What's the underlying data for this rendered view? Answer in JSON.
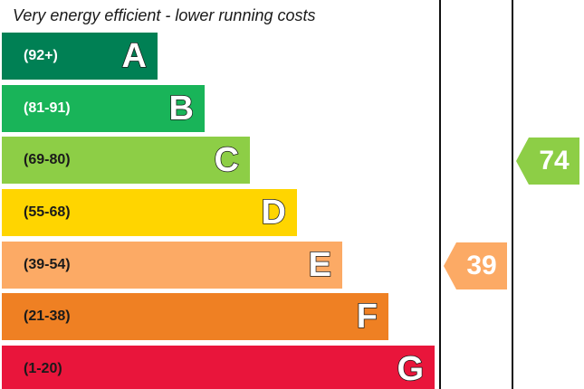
{
  "chart_data": {
    "type": "bar",
    "title": "Very energy efficient - lower running costs",
    "bands": [
      {
        "letter": "A",
        "range": "(92+)",
        "color": "#008054",
        "text_color": "#ffffff"
      },
      {
        "letter": "B",
        "range": "(81-91)",
        "color": "#19b459",
        "text_color": "#ffffff"
      },
      {
        "letter": "C",
        "range": "(69-80)",
        "color": "#8dce46",
        "text_color": "#1a1a1a"
      },
      {
        "letter": "D",
        "range": "(55-68)",
        "color": "#ffd500",
        "text_color": "#1a1a1a"
      },
      {
        "letter": "E",
        "range": "(39-54)",
        "color": "#fcaa65",
        "text_color": "#1a1a1a"
      },
      {
        "letter": "F",
        "range": "(21-38)",
        "color": "#ef8023",
        "text_color": "#1a1a1a"
      },
      {
        "letter": "G",
        "range": "(1-20)",
        "color": "#e9153b",
        "text_color": "#1a1a1a"
      }
    ],
    "ratings": [
      {
        "column": "current",
        "value": "39",
        "band": "E",
        "color": "#fcaa65"
      },
      {
        "column": "potential",
        "value": "74",
        "band": "C",
        "color": "#8dce46"
      }
    ]
  }
}
